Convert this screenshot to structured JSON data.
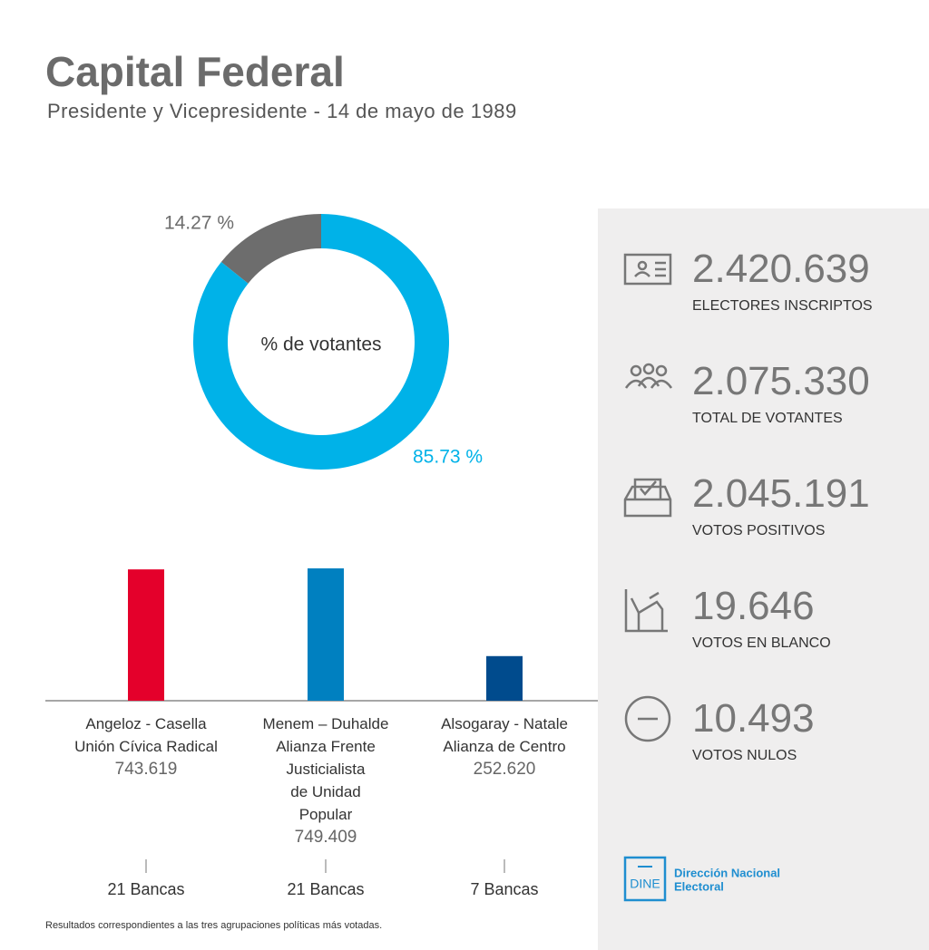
{
  "title": "Capital Federal",
  "subtitle": "Presidente y Vicepresidente - 14 de mayo de 1989",
  "chart_data": [
    {
      "type": "pie",
      "center_label": "% de votantes",
      "values": [
        14.27,
        85.73
      ],
      "value_labels": [
        "14.27 %",
        "85.73 %"
      ],
      "colors": [
        "#6d6d6d",
        "#00b2e8"
      ]
    },
    {
      "type": "bar",
      "categories": [
        "Angeloz - Casella",
        "Menem – Duhalde",
        "Alsogaray - Natale"
      ],
      "parties": [
        "Unión Cívica Radical",
        "Alianza Frente Justicialista de Unidad Popular",
        "Alianza de Centro"
      ],
      "values": [
        743619,
        749409,
        252620
      ],
      "value_labels": [
        "743.619",
        "749.409",
        "252.620"
      ],
      "colors": [
        "#e4002b",
        "#0080c0",
        "#004b8d"
      ],
      "seats": [
        "21 Bancas",
        "21 Bancas",
        "7 Bancas"
      ]
    }
  ],
  "stats": [
    {
      "value": "2.420.639",
      "label": "ELECTORES INSCRIPTOS"
    },
    {
      "value": "2.075.330",
      "label": "TOTAL DE VOTANTES"
    },
    {
      "value": "2.045.191",
      "label": "VOTOS POSITIVOS"
    },
    {
      "value": "19.646",
      "label": "VOTOS EN BLANCO"
    },
    {
      "value": "10.493",
      "label": "VOTOS NULOS"
    }
  ],
  "logo": {
    "mark": "DINE",
    "name": [
      "Dirección Nacional",
      "Electoral"
    ]
  },
  "footer": "Resultados correspondientes a las tres agrupaciones políticas más votadas."
}
